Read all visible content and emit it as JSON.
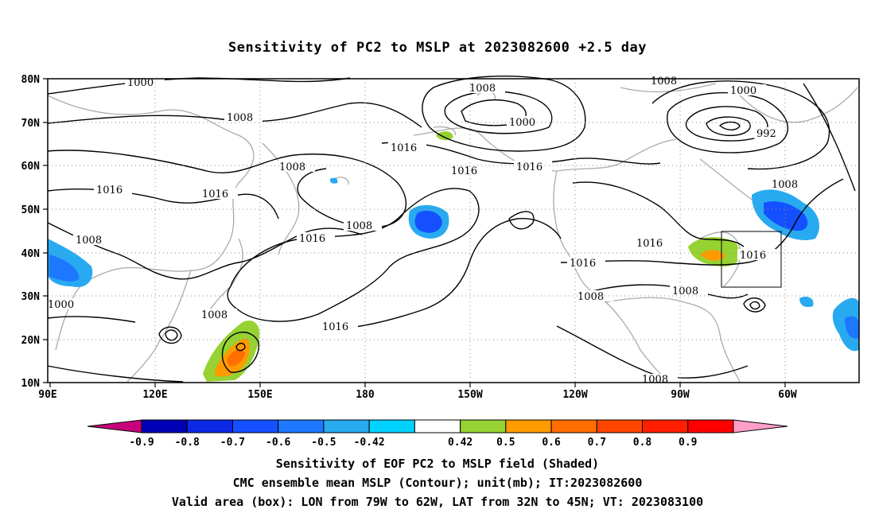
{
  "title": "Sensitivity of PC2 to MSLP at 2023082600 +2.5 day",
  "lat_labels": [
    "80N",
    "70N",
    "60N",
    "50N",
    "40N",
    "30N",
    "20N",
    "10N"
  ],
  "lon_labels": [
    "90E",
    "120E",
    "150E",
    "180",
    "150W",
    "120W",
    "90W",
    "60W"
  ],
  "contour_labels": [
    "1000",
    "1008",
    "1000",
    "1016",
    "1008",
    "1016",
    "1008",
    "1016",
    "1008",
    "1016",
    "1000",
    "1008",
    "1016",
    "1016",
    "1008",
    "1016",
    "1016",
    "1000",
    "1008",
    "992",
    "1000",
    "1008",
    "1016",
    "1008",
    "1008",
    "1016",
    "1008",
    "1008"
  ],
  "colorbar": {
    "levels": [
      "-0.9",
      "-0.8",
      "-0.7",
      "-0.6",
      "-0.5",
      "-0.42",
      "0.42",
      "0.5",
      "0.6",
      "0.7",
      "0.8",
      "0.9"
    ],
    "colors": [
      "#c8007a",
      "#0000b4",
      "#0a28e6",
      "#1450ff",
      "#1e78ff",
      "#28aaf0",
      "#00d2ff",
      "#ffffff",
      "#96d232",
      "#ff9b00",
      "#ff6e00",
      "#ff4600",
      "#ff1e00",
      "#ff0000",
      "#ff9ec8"
    ]
  },
  "captions": [
    "Sensitivity of EOF PC2 to MSLP field (Shaded)",
    "CMC ensemble mean MSLP (Contour); unit(mb); IT:2023082600",
    "Valid area (box): LON from 79W to 62W, LAT from 32N to 45N; VT: 2023083100"
  ]
}
